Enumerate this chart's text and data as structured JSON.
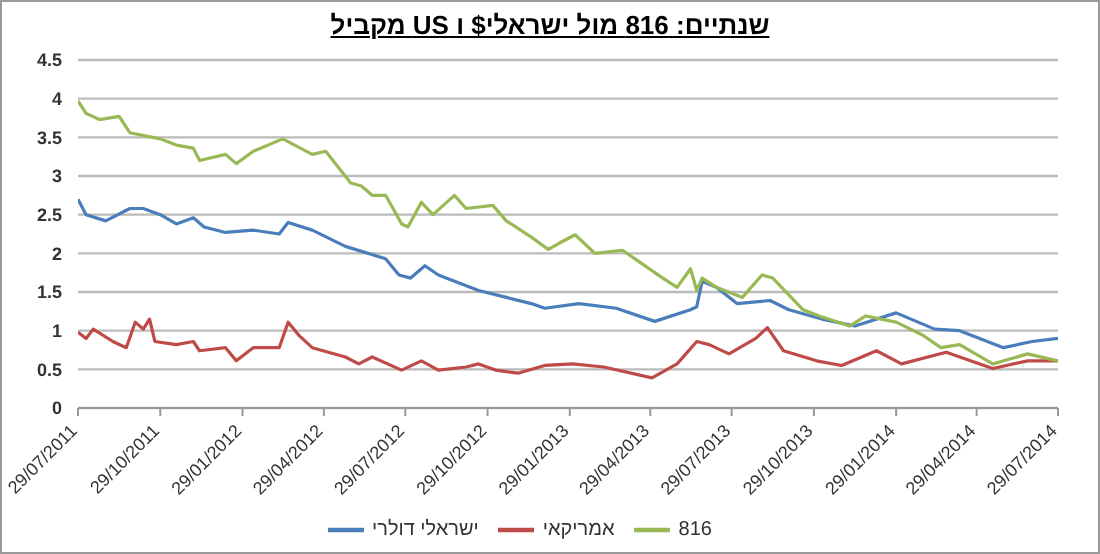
{
  "chart_data": {
    "type": "line",
    "title": "שנתיים: 816 מול ישראלי$ ו US מקביל",
    "xlim": [
      "2011-07-29",
      "2014-07-29"
    ],
    "xticks": [
      {
        "value": "2011-07-29",
        "label": "29/07/2011"
      },
      {
        "value": "2011-10-29",
        "label": "29/10/2011"
      },
      {
        "value": "2012-01-29",
        "label": "29/01/2012"
      },
      {
        "value": "2012-04-29",
        "label": "29/04/2012"
      },
      {
        "value": "2012-07-29",
        "label": "29/07/2012"
      },
      {
        "value": "2012-10-29",
        "label": "29/10/2012"
      },
      {
        "value": "2013-01-29",
        "label": "29/01/2013"
      },
      {
        "value": "2013-04-29",
        "label": "29/04/2013"
      },
      {
        "value": "2013-07-29",
        "label": "29/07/2013"
      },
      {
        "value": "2013-10-29",
        "label": "29/10/2013"
      },
      {
        "value": "2014-01-29",
        "label": "29/01/2014"
      },
      {
        "value": "2014-04-29",
        "label": "29/04/2014"
      },
      {
        "value": "2014-07-29",
        "label": "29/07/2014"
      }
    ],
    "ylim": [
      0,
      4.5
    ],
    "yticks": [
      0,
      0.5,
      1,
      1.5,
      2,
      2.5,
      3,
      3.5,
      4,
      4.5
    ],
    "grid": "y",
    "legend": "bottom",
    "marker": "none",
    "line_style": "solid",
    "series": [
      {
        "name": "ישראלי דולרי",
        "color": "#4a7ebb",
        "x": [
          "2011-07-29",
          "2011-08-07",
          "2011-08-29",
          "2011-09-25",
          "2011-10-10",
          "2011-10-29",
          "2011-11-16",
          "2011-12-05",
          "2011-12-17",
          "2012-01-10",
          "2012-02-10",
          "2012-03-10",
          "2012-03-20",
          "2012-04-16",
          "2012-05-23",
          "2012-07-07",
          "2012-07-22",
          "2012-08-04",
          "2012-08-20",
          "2012-09-04",
          "2012-10-19",
          "2012-11-19",
          "2012-12-17",
          "2013-01-01",
          "2013-02-08",
          "2013-03-22",
          "2013-05-04",
          "2013-06-13",
          "2013-06-20",
          "2013-06-26",
          "2013-07-12",
          "2013-08-04",
          "2013-09-10",
          "2013-10-01",
          "2013-11-07",
          "2013-12-14",
          "2014-01-29",
          "2014-03-13",
          "2014-04-10",
          "2014-05-29",
          "2014-06-30",
          "2014-07-29"
        ],
        "values": [
          2.7,
          2.5,
          2.42,
          2.58,
          2.58,
          2.5,
          2.38,
          2.46,
          2.34,
          2.27,
          2.3,
          2.25,
          2.4,
          2.3,
          2.09,
          1.93,
          1.72,
          1.68,
          1.84,
          1.72,
          1.52,
          1.43,
          1.35,
          1.29,
          1.35,
          1.29,
          1.12,
          1.27,
          1.31,
          1.64,
          1.56,
          1.35,
          1.39,
          1.27,
          1.15,
          1.06,
          1.23,
          1.02,
          1.0,
          0.78,
          0.86,
          0.9
        ]
      },
      {
        "name": "אמריקאי",
        "color": "#be4b48",
        "x": [
          "2011-07-29",
          "2011-08-07",
          "2011-08-15",
          "2011-09-06",
          "2011-09-21",
          "2011-10-01",
          "2011-10-10",
          "2011-10-17",
          "2011-10-23",
          "2011-11-16",
          "2011-12-05",
          "2011-12-12",
          "2012-01-10",
          "2012-01-22",
          "2012-02-10",
          "2012-03-10",
          "2012-03-20",
          "2012-04-01",
          "2012-04-16",
          "2012-05-23",
          "2012-06-07",
          "2012-06-22",
          "2012-07-25",
          "2012-08-16",
          "2012-09-04",
          "2012-10-05",
          "2012-10-19",
          "2012-11-07",
          "2012-12-02",
          "2013-01-01",
          "2013-02-01",
          "2013-03-08",
          "2013-05-01",
          "2013-05-29",
          "2013-06-20",
          "2013-07-04",
          "2013-07-26",
          "2013-08-25",
          "2013-09-07",
          "2013-09-25",
          "2013-11-01",
          "2013-11-29",
          "2014-01-07",
          "2014-02-04",
          "2014-03-26",
          "2014-05-17",
          "2014-06-25",
          "2014-07-29"
        ],
        "values": [
          0.98,
          0.9,
          1.02,
          0.86,
          0.78,
          1.11,
          1.02,
          1.15,
          0.86,
          0.82,
          0.86,
          0.74,
          0.78,
          0.61,
          0.78,
          0.78,
          1.11,
          0.94,
          0.78,
          0.66,
          0.57,
          0.66,
          0.49,
          0.61,
          0.49,
          0.53,
          0.57,
          0.49,
          0.45,
          0.55,
          0.57,
          0.53,
          0.39,
          0.57,
          0.86,
          0.82,
          0.7,
          0.9,
          1.04,
          0.74,
          0.61,
          0.55,
          0.74,
          0.57,
          0.72,
          0.51,
          0.61,
          0.61
        ]
      },
      {
        "name": "816",
        "color": "#98b954",
        "x": [
          "2011-07-29",
          "2011-08-07",
          "2011-08-22",
          "2011-09-13",
          "2011-09-25",
          "2011-10-29",
          "2011-11-16",
          "2011-12-05",
          "2011-12-12",
          "2012-01-10",
          "2012-01-22",
          "2012-02-10",
          "2012-03-14",
          "2012-04-16",
          "2012-05-01",
          "2012-05-29",
          "2012-06-10",
          "2012-06-22",
          "2012-07-07",
          "2012-07-25",
          "2012-08-01",
          "2012-08-16",
          "2012-08-29",
          "2012-09-22",
          "2012-10-05",
          "2012-11-04",
          "2012-11-19",
          "2012-12-17",
          "2013-01-05",
          "2013-01-17",
          "2013-02-04",
          "2013-02-26",
          "2013-03-29",
          "2013-05-13",
          "2013-05-29",
          "2013-06-13",
          "2013-06-20",
          "2013-06-26",
          "2013-07-12",
          "2013-08-10",
          "2013-09-01",
          "2013-09-13",
          "2013-10-17",
          "2013-11-04",
          "2013-12-08",
          "2013-12-26",
          "2014-01-29",
          "2014-02-28",
          "2014-03-20",
          "2014-04-10",
          "2014-05-17",
          "2014-06-25",
          "2014-07-29"
        ],
        "values": [
          3.97,
          3.81,
          3.73,
          3.77,
          3.56,
          3.48,
          3.4,
          3.36,
          3.2,
          3.28,
          3.16,
          3.32,
          3.48,
          3.28,
          3.32,
          2.91,
          2.87,
          2.75,
          2.75,
          2.38,
          2.34,
          2.66,
          2.5,
          2.75,
          2.58,
          2.62,
          2.42,
          2.21,
          2.05,
          2.13,
          2.24,
          2.0,
          2.04,
          1.68,
          1.56,
          1.8,
          1.52,
          1.68,
          1.56,
          1.43,
          1.72,
          1.68,
          1.27,
          1.19,
          1.06,
          1.19,
          1.11,
          0.94,
          0.78,
          0.82,
          0.57,
          0.7,
          0.61
        ]
      }
    ]
  }
}
